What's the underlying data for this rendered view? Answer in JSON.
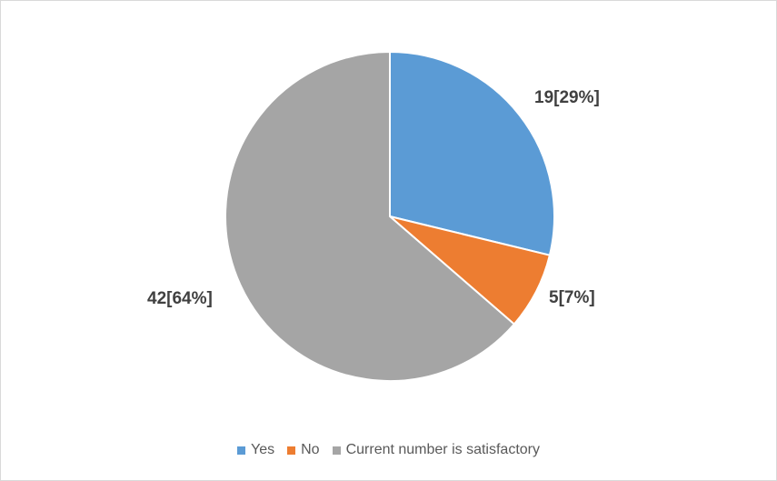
{
  "chart_data": {
    "type": "pie",
    "title": "",
    "start_angle_deg": 0,
    "direction": "clockwise",
    "legend_position": "bottom",
    "slices": [
      {
        "name": "Yes",
        "value": 19,
        "percent": 29,
        "color": "#5b9bd5",
        "label": "19[29%]"
      },
      {
        "name": "No",
        "value": 5,
        "percent": 7,
        "color": "#ed7d31",
        "label": "5[7%]"
      },
      {
        "name": "Current number is satisfactory",
        "value": 42,
        "percent": 64,
        "color": "#a5a5a5",
        "label": "42[64%]"
      }
    ]
  }
}
